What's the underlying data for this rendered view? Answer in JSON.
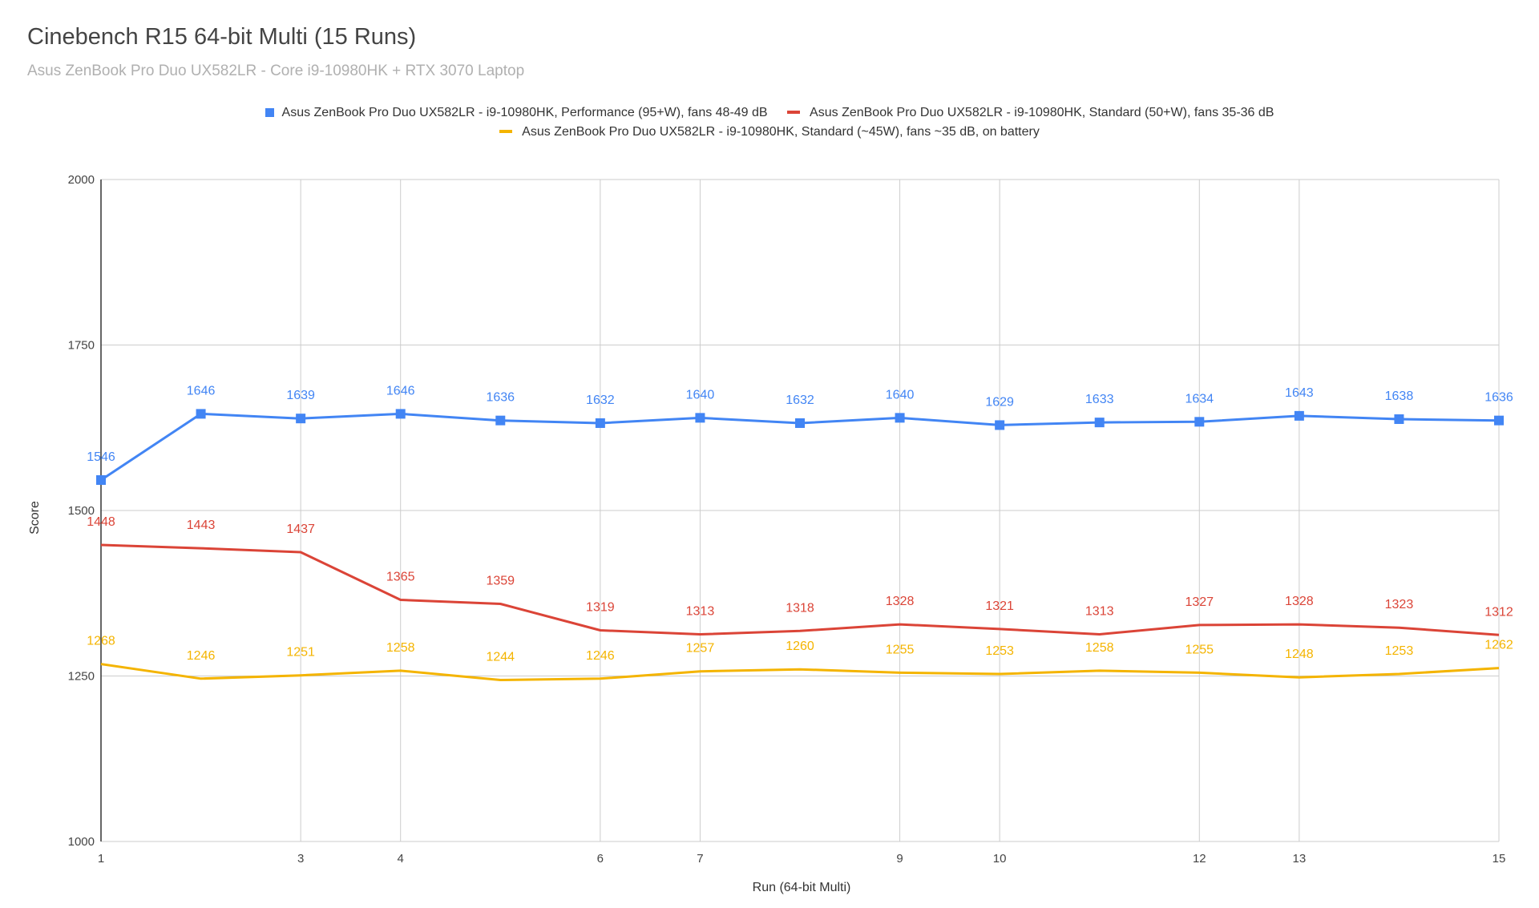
{
  "chart_data": {
    "type": "line",
    "title": "Cinebench R15 64-bit Multi (15 Runs)",
    "subtitle": "Asus ZenBook Pro Duo UX582LR - Core i9-10980HK + RTX 3070 Laptop",
    "xlabel": "Run (64-bit Multi)",
    "ylabel": "Score",
    "xlim": [
      1,
      15
    ],
    "ylim": [
      1000,
      2000
    ],
    "x_ticks": [
      1,
      3,
      4,
      6,
      7,
      9,
      10,
      12,
      13,
      15
    ],
    "y_ticks": [
      1000,
      1250,
      1500,
      1750,
      2000
    ],
    "grid": true,
    "legend_position": "top",
    "x": [
      1,
      2,
      3,
      4,
      5,
      6,
      7,
      8,
      9,
      10,
      11,
      12,
      13,
      14,
      15
    ],
    "series": [
      {
        "name": "Asus ZenBook Pro Duo UX582LR - i9-10980HK, Performance (95+W), fans 48-49 dB",
        "color": "#4285f4",
        "marker": "square",
        "values": [
          1546,
          1646,
          1639,
          1646,
          1636,
          1632,
          1640,
          1632,
          1640,
          1629,
          1633,
          1634,
          1643,
          1638,
          1636
        ]
      },
      {
        "name": "Asus ZenBook Pro Duo UX582LR - i9-10980HK, Standard (50+W), fans 35-36 dB",
        "color": "#db4437",
        "marker": "none",
        "values": [
          1448,
          1443,
          1437,
          1365,
          1359,
          1319,
          1313,
          1318,
          1328,
          1321,
          1313,
          1327,
          1328,
          1323,
          1312
        ]
      },
      {
        "name": "Asus ZenBook Pro Duo UX582LR - i9-10980HK, Standard (~45W), fans ~35 dB, on battery",
        "color": "#f4b400",
        "marker": "none",
        "values": [
          1268,
          1246,
          1251,
          1258,
          1244,
          1246,
          1257,
          1260,
          1255,
          1253,
          1258,
          1255,
          1248,
          1253,
          1262
        ]
      }
    ]
  }
}
